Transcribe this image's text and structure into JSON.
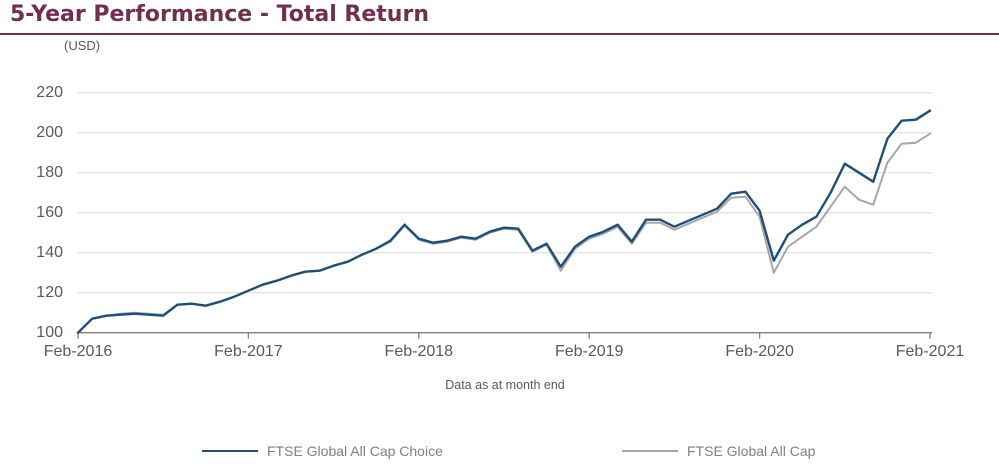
{
  "header": {
    "title": "5-Year Performance - Total Return"
  },
  "chart": {
    "units_label": "(USD)",
    "footnote": "Data as at month end"
  },
  "colors": {
    "title": "#712F4E",
    "title_rule": "#712F4E",
    "axis_text": "#595959",
    "legend_text": "#7F7F7F",
    "gridline": "#D9D9D9",
    "axis_line": "#808080",
    "series_choice": "#1F4E79",
    "series_allcap": "#A6A6A6"
  },
  "chart_data": {
    "type": "line",
    "title": "5-Year Performance - Total Return",
    "ylabel": "(USD)",
    "xlabel": "Data as at month end",
    "x_unit": "monthly observations at month end, Feb-2016 through Feb-2021 (61 points)",
    "x_tick_labels": [
      "Feb-2016",
      "Feb-2017",
      "Feb-2018",
      "Feb-2019",
      "Feb-2020",
      "Feb-2021"
    ],
    "ylim": [
      100,
      220
    ],
    "yticks": [
      100,
      120,
      140,
      160,
      180,
      200,
      220
    ],
    "grid": "horizontal",
    "legend_position": "bottom",
    "series": [
      {
        "name": "FTSE Global All Cap Choice",
        "color": "#1F4E79",
        "values": [
          100,
          107,
          108.5,
          109,
          109.5,
          109,
          108.5,
          114,
          114.5,
          113.5,
          115.5,
          118,
          121,
          124,
          126,
          128.5,
          130.5,
          131,
          133.5,
          135.5,
          139,
          142,
          146,
          154,
          147,
          145,
          146,
          148,
          147,
          150.5,
          152.5,
          152,
          141,
          144.5,
          133,
          143,
          148,
          150.5,
          154,
          145.5,
          156.5,
          156.5,
          153,
          156,
          159,
          162,
          169.5,
          170.5,
          161,
          136,
          149,
          154,
          158,
          170,
          184.5,
          180,
          175.5,
          197,
          206,
          206.5,
          211
        ]
      },
      {
        "name": "FTSE Global All Cap",
        "color": "#A6A6A6",
        "values": [
          100,
          107,
          108.5,
          109.5,
          110,
          109.5,
          109,
          114,
          114.5,
          113.5,
          115.5,
          118,
          121,
          124,
          126,
          128.5,
          130.5,
          131,
          133.5,
          135.5,
          139,
          142,
          145.5,
          153.5,
          146.5,
          144.5,
          145.5,
          147.5,
          146.5,
          150,
          152,
          151.5,
          140.5,
          144,
          131,
          142,
          147,
          149.5,
          153,
          144.5,
          155,
          155,
          151.5,
          154.5,
          157.5,
          160.5,
          167.5,
          168,
          158,
          130,
          143,
          148,
          153,
          163,
          173,
          166.5,
          164,
          185,
          194.5,
          195,
          199.5
        ]
      }
    ]
  }
}
